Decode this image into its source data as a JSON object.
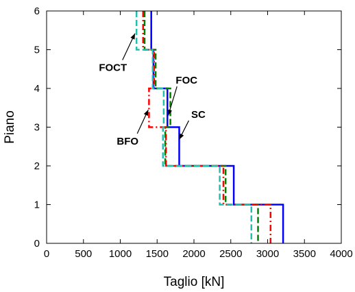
{
  "chart_data": {
    "type": "line",
    "xlabel": "Taglio [kN]",
    "ylabel": "Piano",
    "xlim": [
      0,
      4000
    ],
    "ylim": [
      0,
      6
    ],
    "xticks": [
      "0",
      "500",
      "1000",
      "1500",
      "2000",
      "2500",
      "3000",
      "3500",
      "4000"
    ],
    "yticks": [
      "0",
      "1",
      "2",
      "3",
      "4",
      "5",
      "6"
    ],
    "grid": false,
    "series": [
      {
        "name": "SC",
        "color": "#0000ff",
        "dash": "solid",
        "values": [
          {
            "floor": 6,
            "shear": 1420
          },
          {
            "floor": 5,
            "shear": 1450
          },
          {
            "floor": 4,
            "shear": 1640
          },
          {
            "floor": 3,
            "shear": 1800
          },
          {
            "floor": 2,
            "shear": 2540
          },
          {
            "floor": 1,
            "shear": 3210
          }
        ]
      },
      {
        "name": "FOC",
        "color": "#008000",
        "dash": "dashed",
        "values": [
          {
            "floor": 6,
            "shear": 1330
          },
          {
            "floor": 5,
            "shear": 1480
          },
          {
            "floor": 4,
            "shear": 1680
          },
          {
            "floor": 3,
            "shear": 1610
          },
          {
            "floor": 2,
            "shear": 2430
          },
          {
            "floor": 1,
            "shear": 2870
          }
        ]
      },
      {
        "name": "BFO",
        "color": "#ff0000",
        "dash": "dashdot",
        "values": [
          {
            "floor": 6,
            "shear": 1310
          },
          {
            "floor": 5,
            "shear": 1460
          },
          {
            "floor": 4,
            "shear": 1390
          },
          {
            "floor": 3,
            "shear": 1620
          },
          {
            "floor": 2,
            "shear": 2400
          },
          {
            "floor": 1,
            "shear": 3040
          }
        ]
      },
      {
        "name": "FOCT",
        "color": "#20c0b0",
        "dash": "dashed",
        "values": [
          {
            "floor": 6,
            "shear": 1220
          },
          {
            "floor": 5,
            "shear": 1440
          },
          {
            "floor": 4,
            "shear": 1590
          },
          {
            "floor": 3,
            "shear": 1580
          },
          {
            "floor": 2,
            "shear": 2350
          },
          {
            "floor": 1,
            "shear": 2780
          }
        ]
      }
    ],
    "annotations": [
      {
        "label": "FOCT",
        "x": 900,
        "y": 4.45,
        "arrow_to": [
          1200,
          5.42
        ]
      },
      {
        "label": "FOC",
        "x": 1900,
        "y": 4.12,
        "arrow_to": [
          1650,
          3.3
        ]
      },
      {
        "label": "SC",
        "x": 2060,
        "y": 3.24,
        "arrow_to": [
          1800,
          2.68
        ]
      },
      {
        "label": "BFO",
        "x": 1100,
        "y": 2.55,
        "arrow_to": [
          1380,
          3.45
        ]
      }
    ]
  }
}
